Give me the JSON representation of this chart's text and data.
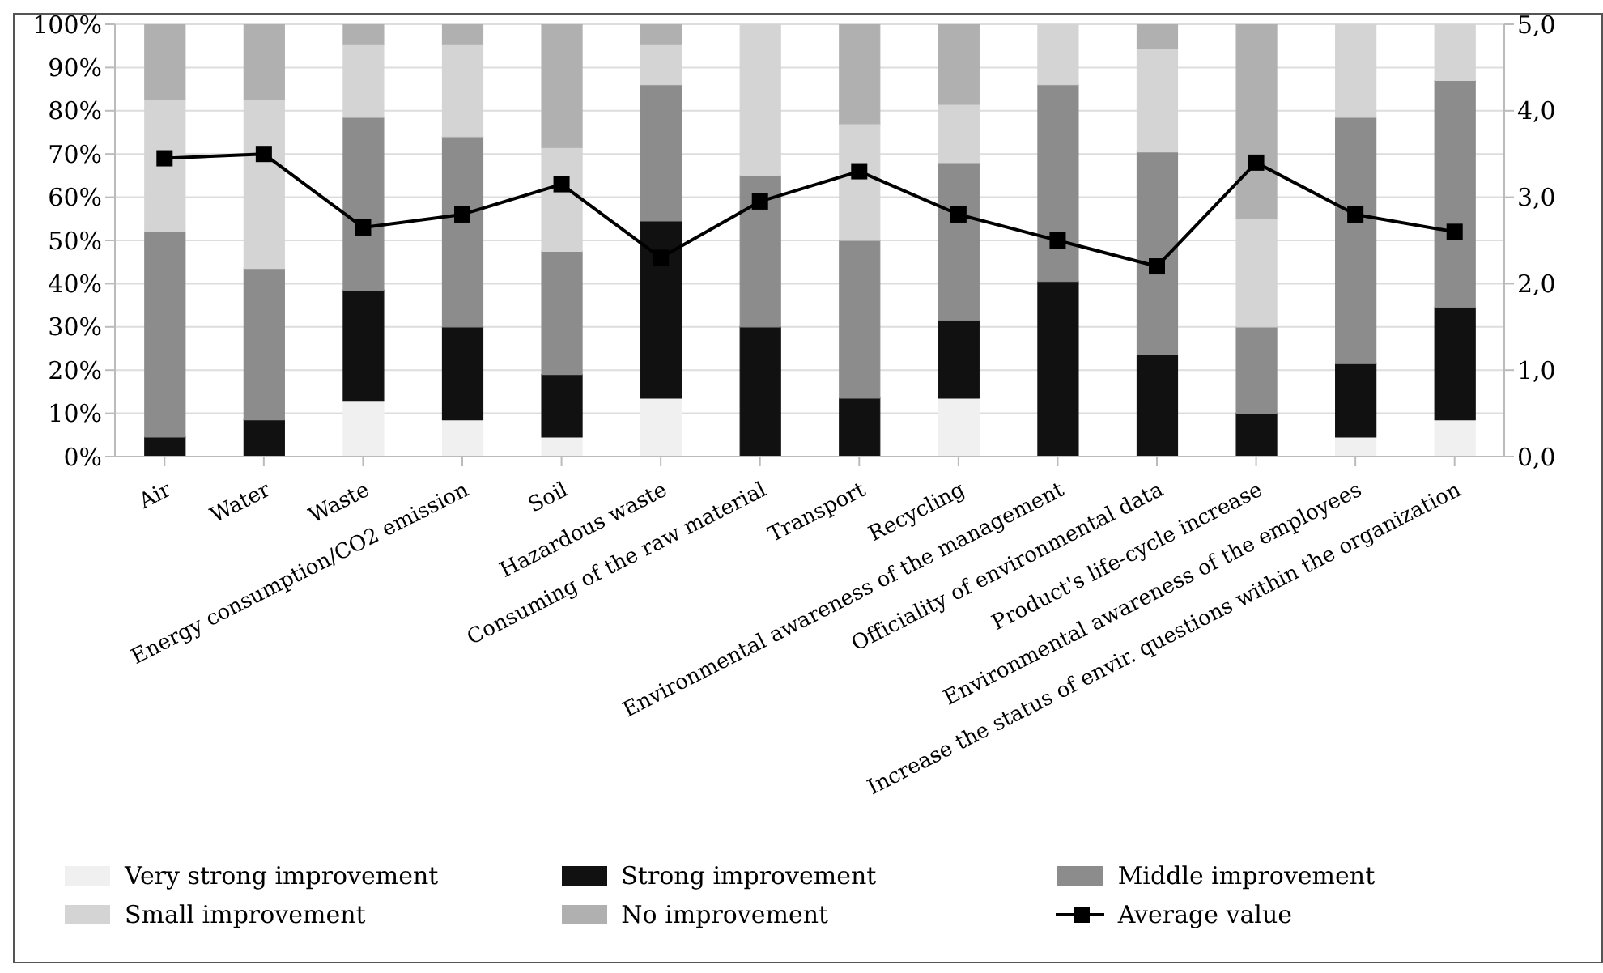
{
  "chart_data": {
    "type": "bar",
    "stacked": true,
    "categories": [
      "Air",
      "Water",
      "Waste",
      "Energy consumption/CO2 emission",
      "Soil",
      "Hazardous waste",
      "Consuming of the raw material",
      "Transport",
      "Recycling",
      "Environmental awareness of the management",
      "Officiality of environmental data",
      "Product's life-cycle increase",
      "Environmental awareness of the employees",
      "Increase the status of envir. questions within the organization"
    ],
    "series": [
      {
        "name": "Very strong improvement",
        "color": "#f0f0f0",
        "values": [
          0,
          0,
          13,
          8.5,
          4.5,
          13.5,
          0,
          0,
          13.5,
          0,
          0,
          0,
          4.5,
          8.5
        ]
      },
      {
        "name": "Strong improvement",
        "color": "#111111",
        "values": [
          4.5,
          8.5,
          25.5,
          21.5,
          14.5,
          41,
          30,
          13.5,
          18,
          40.5,
          23.5,
          10,
          17,
          26
        ]
      },
      {
        "name": "Middle improvement",
        "color": "#8c8c8c",
        "values": [
          47.5,
          35,
          40,
          44,
          28.5,
          31.5,
          35,
          36.5,
          36.5,
          45.5,
          47,
          20,
          57,
          52.5
        ]
      },
      {
        "name": "Small improvement",
        "color": "#d4d4d4",
        "values": [
          30.5,
          39,
          17,
          21.5,
          24,
          9.5,
          35,
          27,
          13.5,
          14,
          24,
          25,
          21.5,
          13
        ]
      },
      {
        "name": "No improvement",
        "color": "#b0b0b0",
        "values": [
          17.5,
          17.5,
          4.5,
          4.5,
          28.5,
          4.5,
          0,
          23,
          18.5,
          0,
          5.5,
          45,
          0,
          0
        ]
      },
      {
        "name": "Average value",
        "type": "line",
        "axis": "y2",
        "color": "#000000",
        "marker": "square",
        "values": [
          3.45,
          3.5,
          2.65,
          2.8,
          3.15,
          2.3,
          2.95,
          3.3,
          2.8,
          2.5,
          2.2,
          3.4,
          2.8,
          2.6
        ]
      }
    ],
    "ylim": [
      0,
      100
    ],
    "yticks": [
      {
        "value": 0,
        "label": "0%"
      },
      {
        "value": 10,
        "label": "10%"
      },
      {
        "value": 20,
        "label": "20%"
      },
      {
        "value": 30,
        "label": "30%"
      },
      {
        "value": 40,
        "label": "40%"
      },
      {
        "value": 50,
        "label": "50%"
      },
      {
        "value": 60,
        "label": "60%"
      },
      {
        "value": 70,
        "label": "70%"
      },
      {
        "value": 80,
        "label": "80%"
      },
      {
        "value": 90,
        "label": "90%"
      },
      {
        "value": 100,
        "label": "100%"
      }
    ],
    "y2lim": [
      0,
      5
    ],
    "y2ticks": [
      {
        "value": 0,
        "label": "0,0"
      },
      {
        "value": 1,
        "label": "1,0"
      },
      {
        "value": 2,
        "label": "2,0"
      },
      {
        "value": 3,
        "label": "3,0"
      },
      {
        "value": 4,
        "label": "4,0"
      },
      {
        "value": 5,
        "label": "5,0"
      }
    ],
    "grid": "y",
    "legend": "bottom"
  }
}
